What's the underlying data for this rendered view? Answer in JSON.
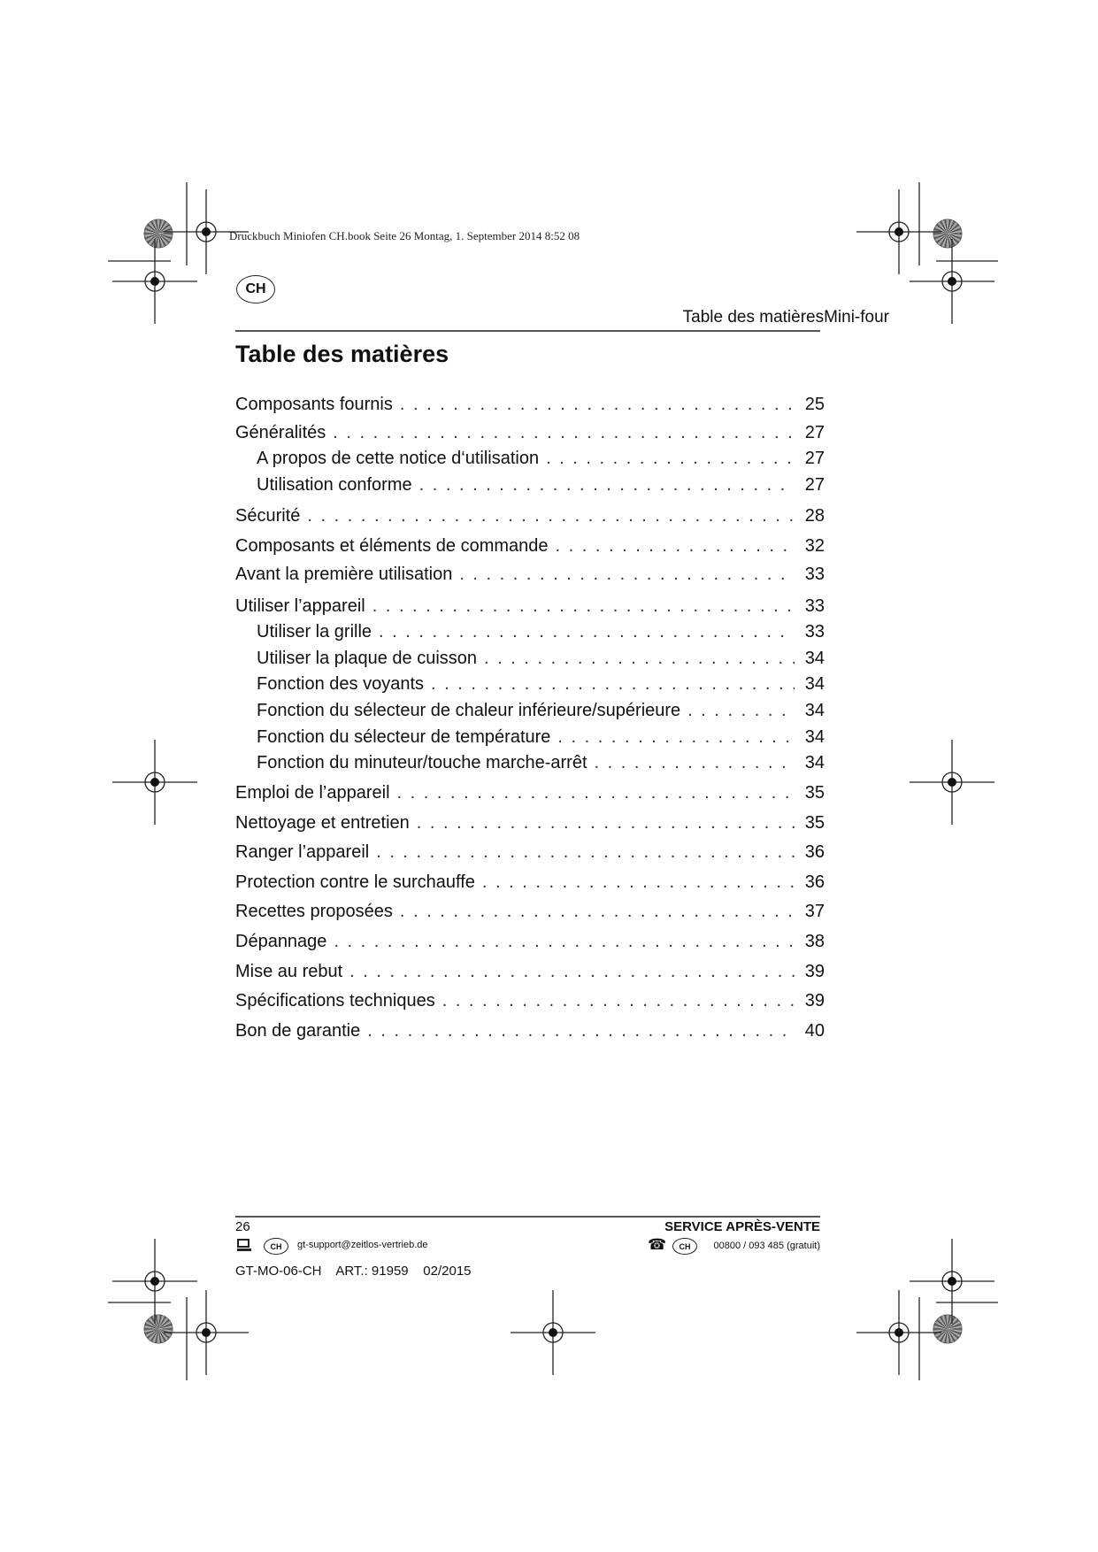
{
  "print_header": "Druckbuch Miniofen CH.book  Seite 26  Montag, 1. September 2014  8:52 08",
  "country_badge": "CH",
  "running_header": "Table des matièresMini-four",
  "title": "Table des matières",
  "toc": [
    {
      "label": "Composants fournis",
      "page": "25",
      "level": 1
    },
    {
      "label": "Généralités",
      "page": "27",
      "level": 1
    },
    {
      "label": "A propos de cette notice d‘utilisation",
      "page": "27",
      "level": 2
    },
    {
      "label": "Utilisation conforme",
      "page": "27",
      "level": 2
    },
    {
      "label": "Sécurité",
      "page": "28",
      "level": 1
    },
    {
      "label": "Composants et éléments de commande",
      "page": "32",
      "level": 1
    },
    {
      "label": "Avant la première utilisation",
      "page": "33",
      "level": 1
    },
    {
      "label": "Utiliser l’appareil",
      "page": "33",
      "level": 1
    },
    {
      "label": "Utiliser la grille",
      "page": "33",
      "level": 2
    },
    {
      "label": "Utiliser la plaque de cuisson",
      "page": "34",
      "level": 2
    },
    {
      "label": "Fonction des voyants",
      "page": "34",
      "level": 2
    },
    {
      "label": "Fonction du sélecteur de chaleur inférieure/supérieure",
      "page": "34",
      "level": 2
    },
    {
      "label": "Fonction du sélecteur de température",
      "page": "34",
      "level": 2
    },
    {
      "label": "Fonction du minuteur/touche marche-arrêt",
      "page": "34",
      "level": 2
    },
    {
      "label": "Emploi de l’appareil",
      "page": "35",
      "level": 1
    },
    {
      "label": "Nettoyage et entretien",
      "page": "35",
      "level": 1
    },
    {
      "label": "Ranger l’appareil",
      "page": "36",
      "level": 1
    },
    {
      "label": "Protection contre le surchauffe",
      "page": "36",
      "level": 1
    },
    {
      "label": "Recettes proposées",
      "page": "37",
      "level": 1
    },
    {
      "label": "Dépannage",
      "page": "38",
      "level": 1
    },
    {
      "label": "Mise au rebut",
      "page": "39",
      "level": 1
    },
    {
      "label": "Spécifications techniques",
      "page": "39",
      "level": 1
    },
    {
      "label": "Bon de garantie",
      "page": "40",
      "level": 1
    }
  ],
  "footer": {
    "page_number": "26",
    "service_label": "SERVICE APRÈS-VENTE",
    "email_badge": "CH",
    "email": "gt-support@zeitlos-vertrieb.de",
    "phone_badge": "CH",
    "phone": "00800 / 093 485 (gratuit)",
    "article_line": "GT-MO-06-CH    ART.: 91959    02/2015",
    "email_icon": "computer-icon",
    "phone_icon": "telephone-icon"
  }
}
